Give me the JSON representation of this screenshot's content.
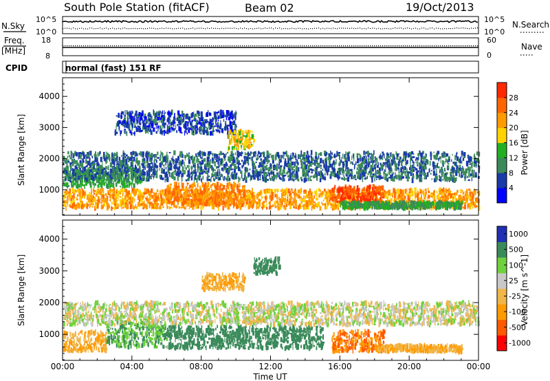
{
  "header": {
    "station": "South Pole Station (fitACF)",
    "beam": "Beam 02",
    "date": "19/Oct/2013"
  },
  "top_panels": {
    "nsky_label": "N.Sky",
    "nsky_ticks": [
      "10^5",
      "10^0"
    ],
    "nsearch_label": "N.Search",
    "nsearch_ticks": [
      "10^5",
      "10^0"
    ],
    "freq_label": "Freq.",
    "freq_unit": "[MHz]",
    "freq_ticks": [
      "18",
      "8"
    ],
    "nave_label": "Nave",
    "nave_ticks": [
      "60",
      "0"
    ],
    "cpid_label": "CPID",
    "cpid_text": "normal (fast) 151 RF"
  },
  "colors": {
    "power_scale": [
      "#0000ff",
      "#1a3aa8",
      "#3b8a5a",
      "#22b022",
      "#ffd200",
      "#ff9b00",
      "#ff6600",
      "#ff2a00"
    ],
    "velocity_scale": [
      "#ff0000",
      "#ff5a00",
      "#ff9b00",
      "#f0b64a",
      "#c8c8c8",
      "#6ed23c",
      "#3a8a5a",
      "#2030b4"
    ]
  },
  "chart_data": [
    {
      "type": "heatmap",
      "name": "power",
      "ylabel": "Slant Range [km]",
      "xlabel": "Time UT",
      "x_ticks": [
        "00:00",
        "04:00",
        "08:00",
        "12:00",
        "16:00",
        "20:00",
        "00:00"
      ],
      "xlim_hours": [
        0,
        24
      ],
      "y_ticks": [
        "1000",
        "2000",
        "3000",
        "4000"
      ],
      "ylim_km": [
        180,
        4600
      ],
      "colorbar_label": "Power [dB]",
      "colorbar_ticks": [
        "4",
        "8",
        "12",
        "16",
        "20",
        "24",
        "28"
      ],
      "clim": [
        0,
        32
      ],
      "scatter_regions": [
        {
          "t0": 0.0,
          "t1": 24.0,
          "r0": 400,
          "r1": 1000,
          "value": 22
        },
        {
          "t0": 0.0,
          "t1": 4.5,
          "r0": 1100,
          "r1": 1700,
          "value": 12
        },
        {
          "t0": 6.0,
          "t1": 10.5,
          "r0": 500,
          "r1": 1200,
          "value": 24
        },
        {
          "t0": 15.5,
          "t1": 18.5,
          "r0": 600,
          "r1": 1100,
          "value": 28
        },
        {
          "t0": 3.0,
          "t1": 10.0,
          "r0": 2800,
          "r1": 3500,
          "value": 6
        },
        {
          "t0": 9.5,
          "t1": 11.0,
          "r0": 2300,
          "r1": 2900,
          "value": 18
        },
        {
          "t0": 0.0,
          "t1": 24.0,
          "r0": 1300,
          "r1": 2200,
          "value": 8
        },
        {
          "t0": 16.0,
          "t1": 23.0,
          "r0": 400,
          "r1": 600,
          "value": 12
        }
      ]
    },
    {
      "type": "heatmap",
      "name": "velocity",
      "ylabel": "Slant Range [km]",
      "xlabel": "Time UT",
      "x_ticks": [
        "00:00",
        "04:00",
        "08:00",
        "12:00",
        "16:00",
        "20:00",
        "00:00"
      ],
      "xlim_hours": [
        0,
        24
      ],
      "y_ticks": [
        "1000",
        "2000",
        "3000",
        "4000"
      ],
      "ylim_km": [
        180,
        4600
      ],
      "colorbar_label": "Velocity [m s^-1]",
      "colorbar_ticks": [
        "1000",
        "500",
        "100",
        "25",
        "-25",
        "-100",
        "-500",
        "-1000"
      ],
      "scatter_regions": [
        {
          "t0": 0.0,
          "t1": 2.5,
          "r0": 450,
          "r1": 1100,
          "value": -100
        },
        {
          "t0": 2.5,
          "t1": 6.0,
          "r0": 600,
          "r1": 1400,
          "value": 100
        },
        {
          "t0": 6.0,
          "t1": 15.0,
          "r0": 550,
          "r1": 1250,
          "value": 300
        },
        {
          "t0": 15.5,
          "t1": 18.5,
          "r0": 450,
          "r1": 1100,
          "value": -500
        },
        {
          "t0": 0.0,
          "t1": 24.0,
          "r0": 1300,
          "r1": 2000,
          "value": 0
        },
        {
          "t0": 8.0,
          "t1": 10.5,
          "r0": 2400,
          "r1": 2900,
          "value": -100
        },
        {
          "t0": 11.0,
          "t1": 12.5,
          "r0": 2900,
          "r1": 3400,
          "value": 300
        },
        {
          "t0": 18.0,
          "t1": 23.0,
          "r0": 450,
          "r1": 650,
          "value": -100
        }
      ]
    }
  ]
}
